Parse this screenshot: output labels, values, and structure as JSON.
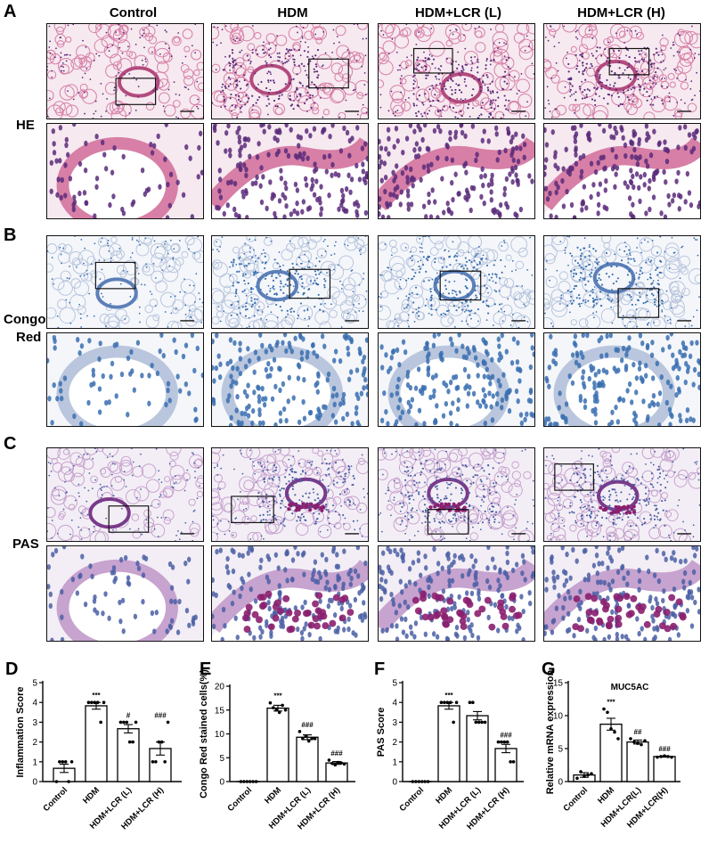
{
  "columns": [
    "Control",
    "HDM",
    "HDM+LCR (L)",
    "HDM+LCR (H)"
  ],
  "panels": {
    "A": {
      "letter": "A",
      "row_label": "HE"
    },
    "B": {
      "letter": "B",
      "row_label_1": "Congo",
      "row_label_2": "Red"
    },
    "C": {
      "letter": "C",
      "row_label": "PAS"
    }
  },
  "colors": {
    "he_bg": "#f6e9f0",
    "he_tissue": "#d77fa6",
    "he_nuclei": "#5a2a7a",
    "congo_bg": "#f4f6fa",
    "congo_tissue": "#b9c6dd",
    "congo_nuclei": "#3a6fb0",
    "pas_bg": "#f3eef5",
    "pas_tissue": "#c7a3cf",
    "pas_nuclei": "#4a5fa5",
    "pas_mucus": "#8b1f6f"
  },
  "chart_data": [
    {
      "letter": "D",
      "type": "bar",
      "title": "",
      "ylabel": "Inflammation Score",
      "xlabel": "",
      "categories": [
        "Control",
        "HDM",
        "HDM+LCR (L)",
        "HDM+LCR (H)"
      ],
      "values": [
        0.67,
        3.83,
        2.67,
        1.67
      ],
      "errors": [
        0.21,
        0.17,
        0.21,
        0.33
      ],
      "points": [
        [
          0,
          1,
          1,
          1,
          0,
          1
        ],
        [
          4,
          4,
          4,
          4,
          3,
          4
        ],
        [
          3,
          3,
          3,
          2,
          2,
          3
        ],
        [
          1,
          1,
          2,
          2,
          1,
          3
        ]
      ],
      "annotations": [
        "",
        "***",
        "#",
        "###"
      ],
      "ylim": [
        0,
        5
      ],
      "yticks": [
        0,
        1,
        2,
        3,
        4,
        5
      ]
    },
    {
      "letter": "E",
      "type": "bar",
      "title": "",
      "ylabel": "Congo Red stained cells(%)",
      "xlabel": "",
      "categories": [
        "Control",
        "HDM",
        "HDM+LCR (L)",
        "HDM+LCR (H)"
      ],
      "values": [
        0,
        15.4,
        9.3,
        3.9
      ],
      "errors": [
        0,
        0.6,
        0.5,
        0.3
      ],
      "points": [
        [
          0,
          0,
          0,
          0,
          0,
          0
        ],
        [
          16.5,
          15.5,
          15,
          14.5,
          16,
          15
        ],
        [
          10.5,
          9,
          9.5,
          8.5,
          9,
          9
        ],
        [
          4.5,
          3.8,
          3.5,
          4,
          3.9,
          3.7
        ]
      ],
      "annotations": [
        "",
        "***",
        "###",
        "###"
      ],
      "ylim": [
        0,
        20
      ],
      "yticks": [
        0,
        5,
        10,
        15,
        20
      ]
    },
    {
      "letter": "F",
      "type": "bar",
      "title": "",
      "ylabel": "PAS Score",
      "xlabel": "",
      "categories": [
        "Control",
        "HDM",
        "HDM+LCR (L)",
        "HDM+LCR (H)"
      ],
      "values": [
        0,
        3.83,
        3.33,
        1.67
      ],
      "errors": [
        0,
        0.17,
        0.21,
        0.21
      ],
      "points": [
        [
          0,
          0,
          0,
          0,
          0,
          0
        ],
        [
          4,
          4,
          4,
          4,
          3,
          4
        ],
        [
          4,
          4,
          3,
          3,
          3,
          3
        ],
        [
          2,
          2,
          2,
          2,
          1,
          1
        ]
      ],
      "annotations": [
        "",
        "***",
        "",
        "###"
      ],
      "ylim": [
        0,
        5
      ],
      "yticks": [
        0,
        1,
        2,
        3,
        4,
        5
      ]
    },
    {
      "letter": "G",
      "type": "bar",
      "title": "MUC5AC",
      "ylabel": "Relative mRNA expression",
      "xlabel": "",
      "categories": [
        "Control",
        "HDM",
        "HDM+LCR(L)",
        "HDM+LCR(H)"
      ],
      "values": [
        1.0,
        8.7,
        6.0,
        3.8
      ],
      "errors": [
        0.35,
        0.9,
        0.3,
        0.1
      ],
      "points": [
        [
          0.5,
          1.5,
          0.8,
          1.0,
          1.2
        ],
        [
          11,
          10.5,
          8,
          7.5,
          6.5
        ],
        [
          6.5,
          6,
          5.8,
          5.6,
          6.2
        ],
        [
          3.7,
          3.8,
          3.9,
          3.8,
          3.7
        ]
      ],
      "annotations": [
        "",
        "***",
        "##",
        "###"
      ],
      "ylim": [
        0,
        15
      ],
      "yticks": [
        0,
        5,
        10,
        15
      ]
    }
  ]
}
